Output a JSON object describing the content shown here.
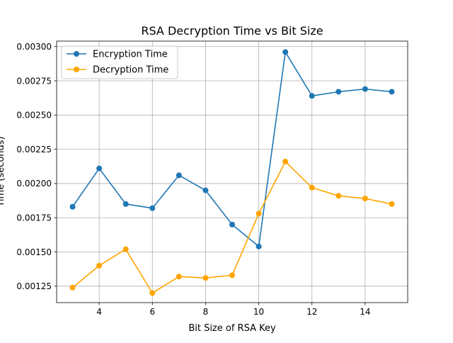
{
  "chart_data": {
    "type": "line",
    "title": "RSA Decryption Time vs Bit Size",
    "xlabel": "Bit Size of RSA Key",
    "ylabel": "Time (seconds)",
    "x": [
      3,
      4,
      5,
      6,
      7,
      8,
      9,
      10,
      11,
      12,
      13,
      14,
      15
    ],
    "xlim": [
      2.4,
      15.6
    ],
    "ylim": [
      0.00113,
      0.00304
    ],
    "xticks": [
      4,
      6,
      8,
      10,
      12,
      14
    ],
    "yticks": [
      "0.00125",
      "0.00150",
      "0.00175",
      "0.00200",
      "0.00225",
      "0.00250",
      "0.00275",
      "0.00300"
    ],
    "grid": true,
    "legend_position": "top-left",
    "series": [
      {
        "name": "Encryption Time",
        "color": "#1f77b4",
        "marker": "circle",
        "values": [
          0.00183,
          0.00211,
          0.00185,
          0.00182,
          0.00206,
          0.00195,
          0.0017,
          0.00154,
          0.00296,
          0.00264,
          0.00267,
          0.00269,
          0.00267
        ]
      },
      {
        "name": "Decryption Time",
        "color": "#ffa500",
        "marker": "circle",
        "values": [
          0.00124,
          0.0014,
          0.00152,
          0.0012,
          0.00132,
          0.00131,
          0.00133,
          0.00178,
          0.00216,
          0.00197,
          0.00191,
          0.00189,
          0.00185
        ]
      }
    ]
  }
}
